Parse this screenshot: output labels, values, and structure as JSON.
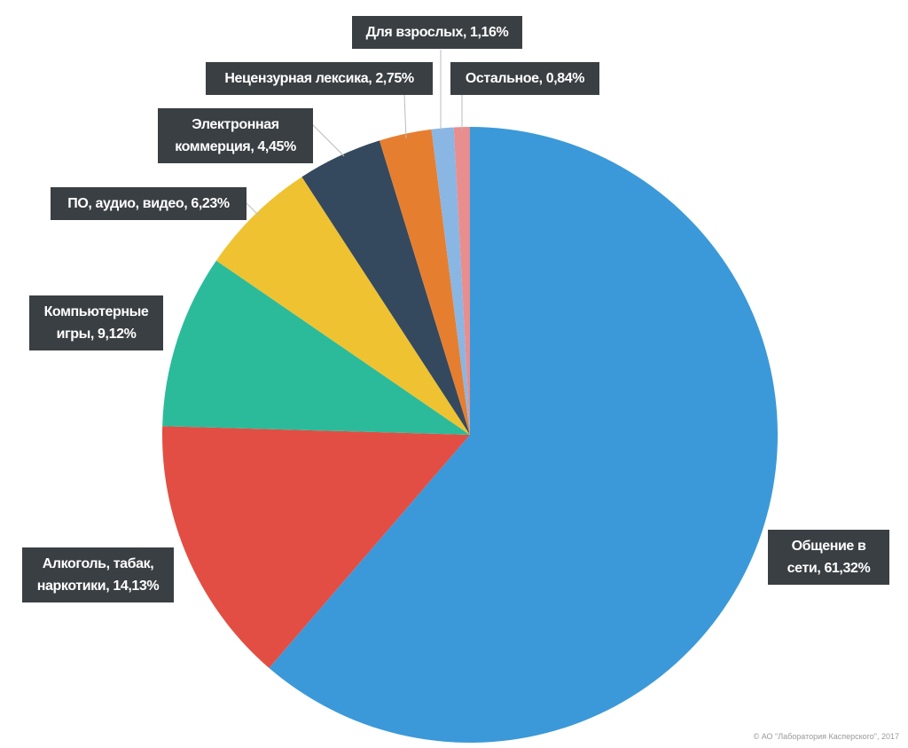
{
  "chart_data": {
    "type": "pie",
    "categories": [
      "Общение в сети,",
      "Алкоголь, табак, наркотики,",
      "Компьютерные игры,",
      "ПО, аудио, видео,",
      "Электронная коммерция,",
      "Нецензурная лексика,",
      "Для взрослых,",
      "Остальное,"
    ],
    "values": [
      61.32,
      14.13,
      9.12,
      6.23,
      4.45,
      2.75,
      1.16,
      0.84
    ],
    "value_labels": [
      "61,32%",
      "14,13%",
      "9,12%",
      "6,23%",
      "4,45%",
      "2,75%",
      "1,16%",
      "0,84%"
    ],
    "colors": [
      "#3b99d9",
      "#e24e43",
      "#2bbb9b",
      "#efc231",
      "#34495e",
      "#e67e30",
      "#8ab6e3",
      "#e88e8e"
    ],
    "start_angle": 90,
    "direction": "clockwise",
    "copyright": "© АО \"Лаборатория Касперского\", 2017"
  }
}
